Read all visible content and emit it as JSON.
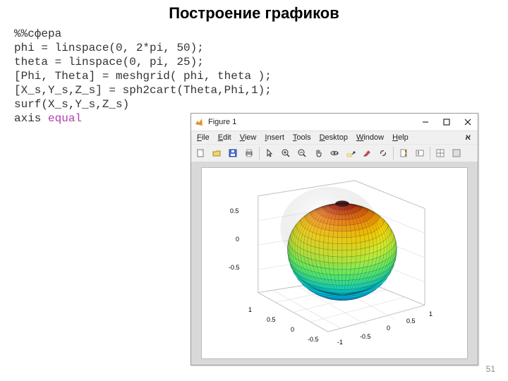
{
  "slide": {
    "title": "Построение графиков",
    "pageNumber": "51"
  },
  "code": {
    "line1": "%%сфера",
    "line2": "phi = linspace(0, 2*pi, 50);",
    "line3": "theta = linspace(0, pi, 25);",
    "line4": "[Phi, Theta] = meshgrid( phi, theta );",
    "line5": "[X_s,Y_s,Z_s] = sph2cart(Theta,Phi,1);",
    "line6": "surf(X_s,Y_s,Z_s)",
    "line7a": "axis ",
    "line7b": "equal"
  },
  "figure": {
    "title": "Figure 1",
    "menus": {
      "file": "File",
      "edit": "Edit",
      "view": "View",
      "insert": "Insert",
      "tools": "Tools",
      "desktop": "Desktop",
      "window": "Window",
      "help": "Help",
      "helpBtn": "א"
    },
    "iconNames": {
      "new": "new-file-icon",
      "open": "open-icon",
      "save": "save-icon",
      "print": "print-icon",
      "pointer": "pointer-icon",
      "zoomin": "zoom-in-icon",
      "zoomout": "zoom-out-icon",
      "pan": "pan-icon",
      "rotate": "rotate3d-icon",
      "datacursor": "data-cursor-icon",
      "brush": "brush-icon",
      "link": "link-icon",
      "colorbar": "colorbar-icon",
      "legend": "legend-icon",
      "subplot": "subplot-icon",
      "panel": "panel-icon"
    },
    "colors": {
      "windowBg": "#f0f0f0",
      "plotBg": "#d9d9d9",
      "axesBg": "#ffffff",
      "gridColor": "#cccccc",
      "axisLine": "#000000"
    },
    "sphere": {
      "type": "surf",
      "phi_divisions": 50,
      "theta_divisions": 25,
      "radius": 1,
      "colormap_low": "#081d9a",
      "colormap_mid1": "#06b3cf",
      "colormap_mid2": "#8ef442",
      "colormap_mid3": "#fdd000",
      "colormap_high": "#6e0000",
      "mesh_color": "#000000"
    },
    "axes": {
      "x_ticks": [
        "-1",
        "-0.5",
        "0",
        "0.5",
        "1"
      ],
      "y_ticks": [
        "-0.5",
        "0",
        "0.5",
        "1"
      ],
      "z_ticks": [
        "-0.5",
        "0",
        "0.5"
      ],
      "tick_fontsize": 9
    }
  }
}
